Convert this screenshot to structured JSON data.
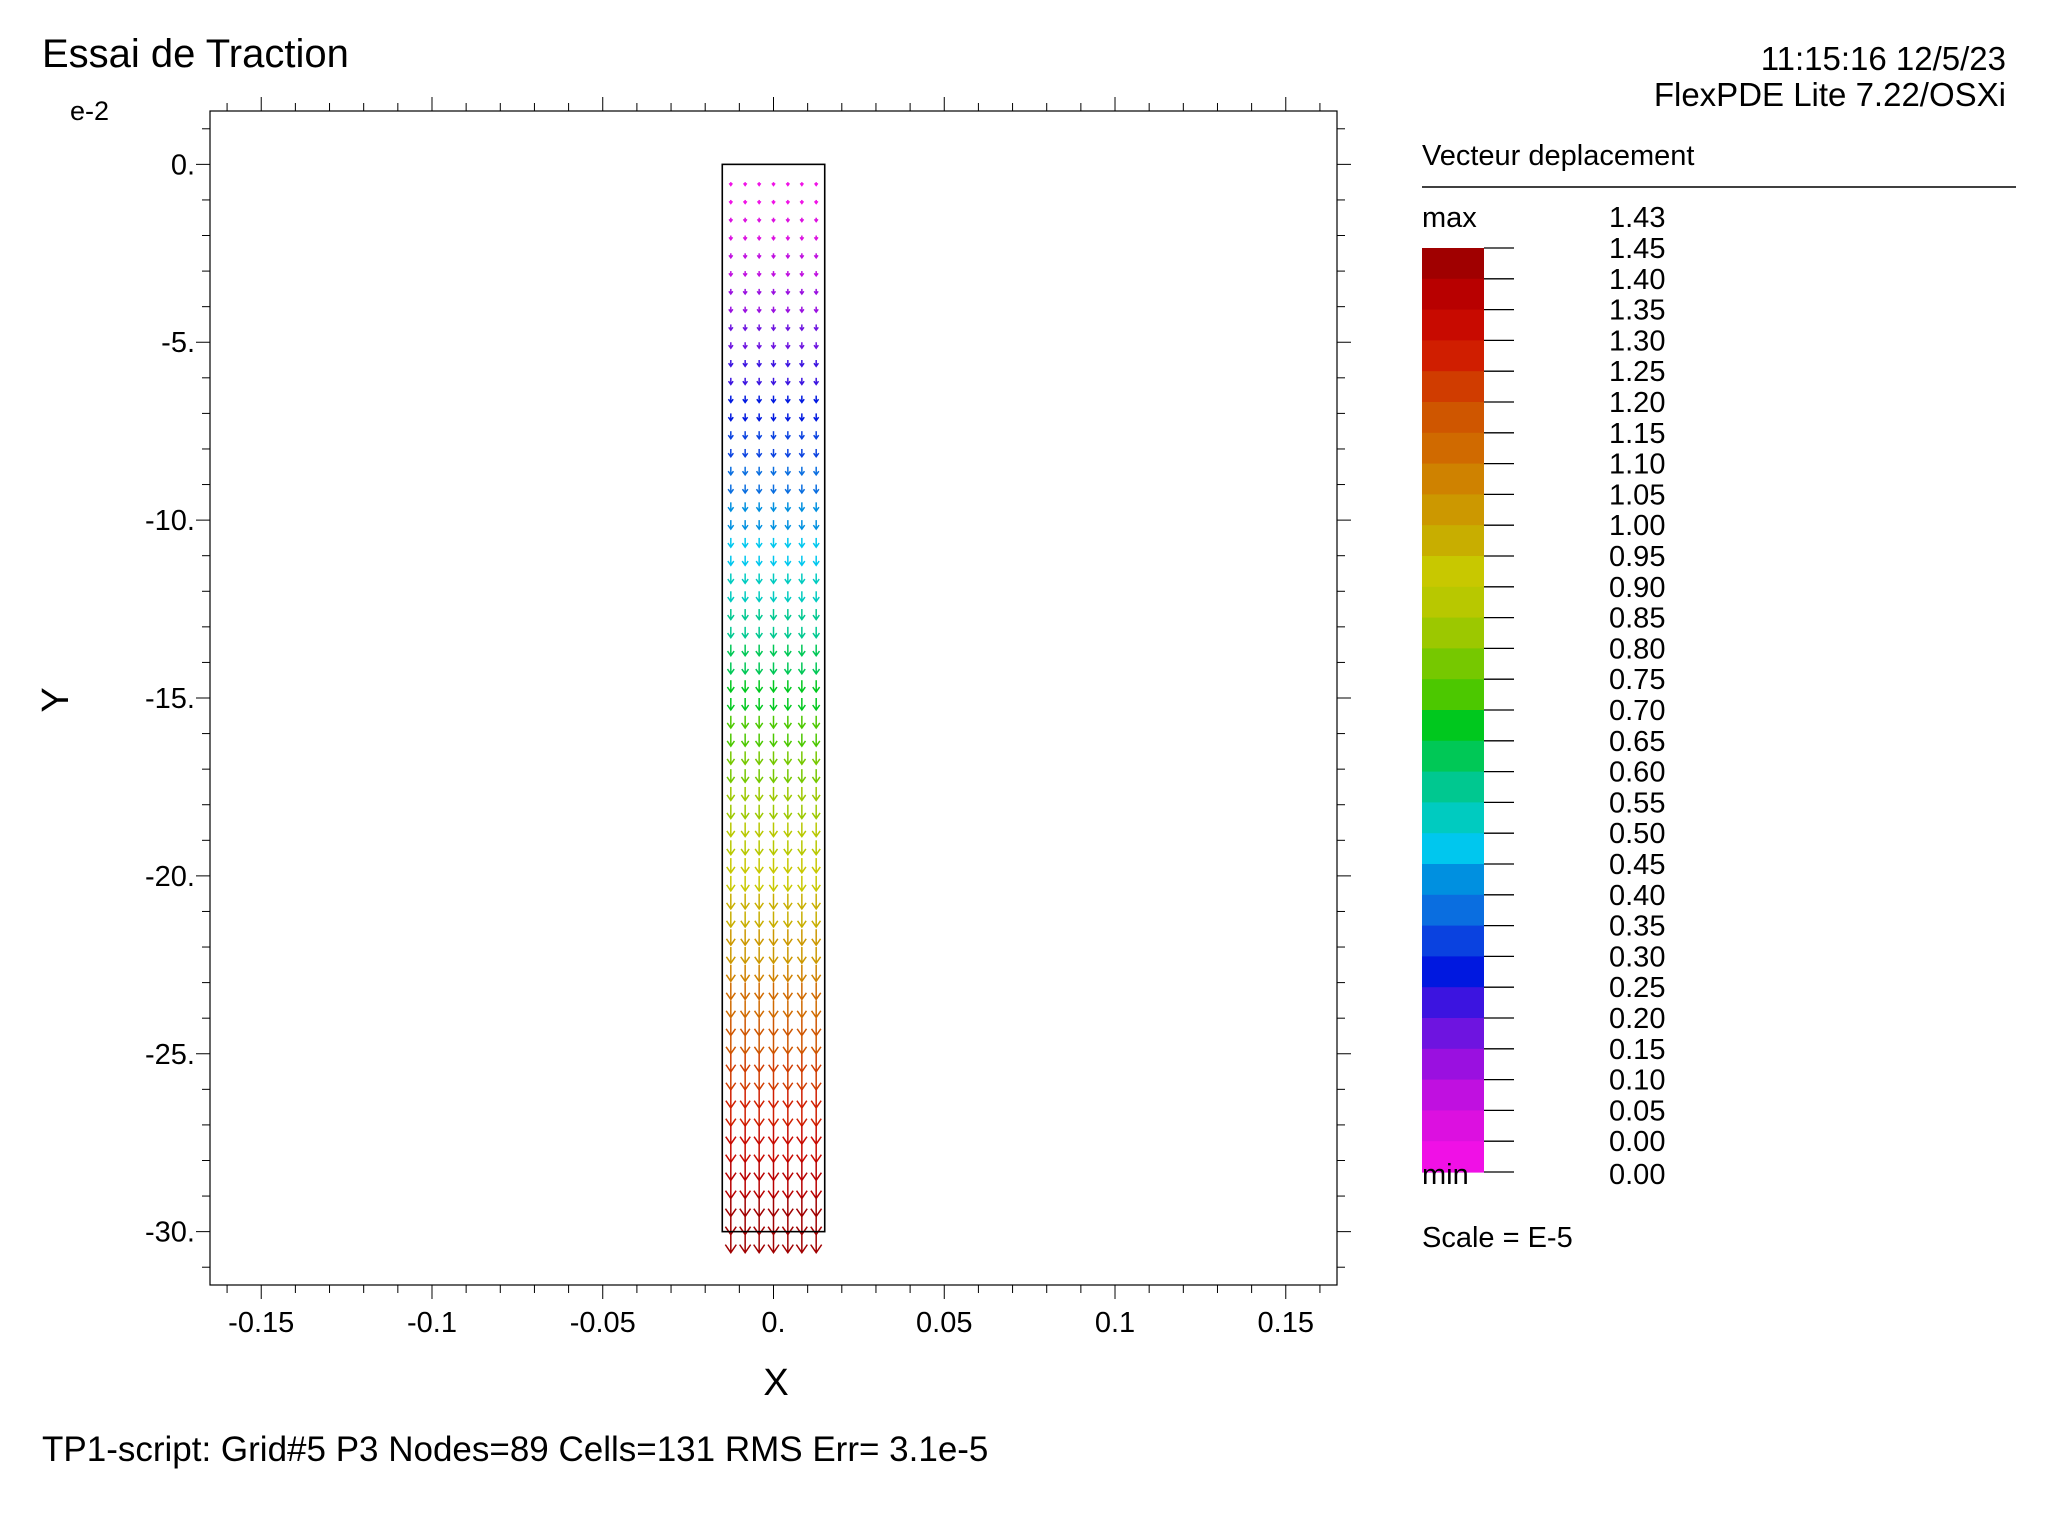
{
  "header": {
    "title": "Essai de Traction",
    "timestamp": "11:15:16 12/5/23",
    "software": "FlexPDE Lite 7.22/OSXi"
  },
  "chart_data": {
    "type": "vector-field",
    "title": "Essai de Traction",
    "xlabel": "X",
    "ylabel": "Y",
    "y_multiplier": "e-2",
    "xlim": [
      -0.165,
      0.165
    ],
    "ylim": [
      -31.5,
      1.5
    ],
    "x_ticks": [
      {
        "value": -0.15,
        "label": "-0.15"
      },
      {
        "value": -0.1,
        "label": "-0.1"
      },
      {
        "value": -0.05,
        "label": "-0.05"
      },
      {
        "value": 0,
        "label": "0."
      },
      {
        "value": 0.05,
        "label": "0.05"
      },
      {
        "value": 0.1,
        "label": "0.1"
      },
      {
        "value": 0.15,
        "label": "0.15"
      }
    ],
    "y_ticks": [
      {
        "value": 0,
        "label": "0."
      },
      {
        "value": -5,
        "label": "-5."
      },
      {
        "value": -10,
        "label": "-10."
      },
      {
        "value": -15,
        "label": "-15."
      },
      {
        "value": -20,
        "label": "-20."
      },
      {
        "value": -25,
        "label": "-25."
      },
      {
        "value": -30,
        "label": "-30."
      }
    ],
    "domain_rect": {
      "x": [
        -0.015,
        0.015
      ],
      "y": [
        -30,
        0
      ]
    },
    "vector_columns_x": [
      -0.0125,
      -0.0083,
      -0.0042,
      0.0,
      0.0042,
      0.0083,
      0.0125
    ],
    "vector_direction": "down",
    "legend": {
      "title": "Vecteur deplacement",
      "max_label": "max",
      "max_value": "1.43",
      "min_label": "min",
      "min_value": "0.00",
      "scale_label": "Scale = E-5",
      "levels": [
        "1.45",
        "1.40",
        "1.35",
        "1.30",
        "1.25",
        "1.20",
        "1.15",
        "1.10",
        "1.05",
        "1.00",
        "0.95",
        "0.90",
        "0.85",
        "0.80",
        "0.75",
        "0.70",
        "0.65",
        "0.60",
        "0.55",
        "0.50",
        "0.45",
        "0.40",
        "0.35",
        "0.30",
        "0.25",
        "0.20",
        "0.15",
        "0.10",
        "0.05",
        "0.00"
      ],
      "colors": [
        "#a00000",
        "#b80000",
        "#c80a00",
        "#d01e00",
        "#d03c00",
        "#cf5600",
        "#d06a00",
        "#cf8200",
        "#cc9800",
        "#c8ae00",
        "#c8c800",
        "#b8c800",
        "#9cc800",
        "#76c800",
        "#4cc800",
        "#00c81e",
        "#00c856",
        "#00c890",
        "#00cbc0",
        "#00c7ee",
        "#0090e0",
        "#0a6ee0",
        "#0a42e0",
        "#0018e0",
        "#3c14e0",
        "#6e14e0",
        "#9a10e0",
        "#c010e0",
        "#dc10e0",
        "#f010e6"
      ]
    }
  },
  "footer": {
    "status": "TP1-script:  Grid#5  P3  Nodes=89 Cells=131 RMS Err= 3.1e-5"
  }
}
